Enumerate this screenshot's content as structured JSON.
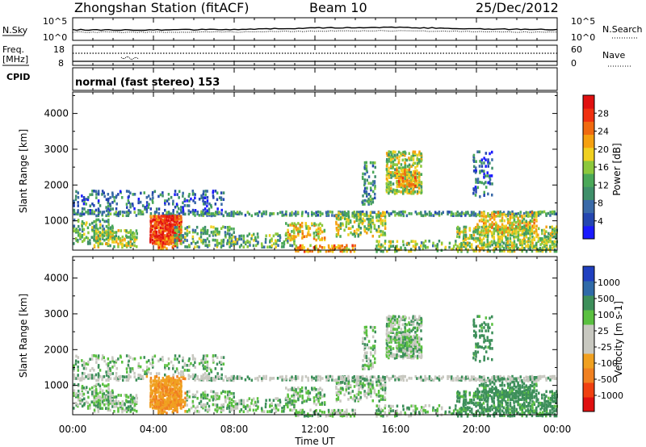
{
  "header": {
    "station": "Zhongshan Station (fitACF)",
    "beam": "Beam 10",
    "date": "25/Dec/2012"
  },
  "aux_panels": {
    "nsky_label": "N.Sky",
    "nsearch_label": "N.Search",
    "freq_label_1": "Freq.",
    "freq_label_2": "[MHz]",
    "nave_label": "Nave",
    "cpid_label": "CPID",
    "cpid_text": "normal (fast stereo) 153",
    "noise_ticks": [
      "10^5",
      "10^0"
    ],
    "freq_ticks": [
      "18",
      "8"
    ],
    "nave_ticks": [
      "60",
      "0"
    ]
  },
  "colors": {
    "power_scale": [
      "#1a1aff",
      "#2446b0",
      "#3a6aa8",
      "#3f8f6a",
      "#4aa858",
      "#8cc83c",
      "#f0d020",
      "#f5a010",
      "#f06a10",
      "#f03010",
      "#e01010"
    ],
    "velocity_scale": [
      "#e01010",
      "#f04010",
      "#f08020",
      "#f0a020",
      "#c8c8c0",
      "#c8c8c0",
      "#5ac040",
      "#3d8f5a",
      "#2f6aa8",
      "#2040c0"
    ]
  },
  "chart_data": [
    {
      "type": "heatmap",
      "panel": "power",
      "ylabel": "Slant Range [km]",
      "yticks": [
        1000,
        2000,
        3000,
        4000
      ],
      "ylim": [
        180,
        4600
      ],
      "xlim": [
        0,
        24
      ],
      "colorbar_label": "Power [dB]",
      "colorbar_ticks": [
        4,
        8,
        12,
        16,
        20,
        24,
        28
      ],
      "colorbar_range": [
        0,
        32
      ]
    },
    {
      "type": "heatmap",
      "panel": "velocity",
      "ylabel": "Slant Range [km]",
      "yticks": [
        1000,
        2000,
        3000,
        4000
      ],
      "ylim": [
        180,
        4600
      ],
      "xlim": [
        0,
        24
      ],
      "colorbar_label": "Velocity [m s-1]",
      "colorbar_ticks": [
        "1000",
        "500",
        "100",
        "25",
        "-25",
        "-100",
        "-500",
        "-1000"
      ]
    }
  ],
  "time_axis": {
    "ticks": [
      "00:00",
      "04:00",
      "08:00",
      "12:00",
      "16:00",
      "20:00",
      "00:00"
    ],
    "label": "Time UT"
  }
}
